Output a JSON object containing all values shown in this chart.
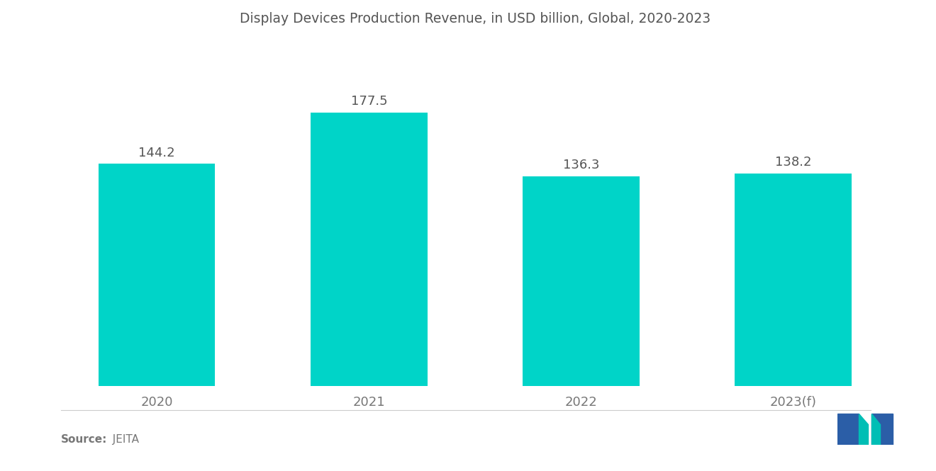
{
  "title": "Display Devices Production Revenue, in USD billion, Global, 2020-2023",
  "categories": [
    "2020",
    "2021",
    "2022",
    "2023(f)"
  ],
  "values": [
    144.2,
    177.5,
    136.3,
    138.2
  ],
  "bar_color": "#00D4C8",
  "bar_width": 0.55,
  "value_label_fontsize": 13,
  "title_fontsize": 13.5,
  "tick_fontsize": 13,
  "source_bold": "Source:",
  "source_normal": "  JEITA",
  "background_color": "#ffffff",
  "ylim": [
    0,
    220
  ],
  "value_color": "#555555",
  "tick_color": "#777777"
}
